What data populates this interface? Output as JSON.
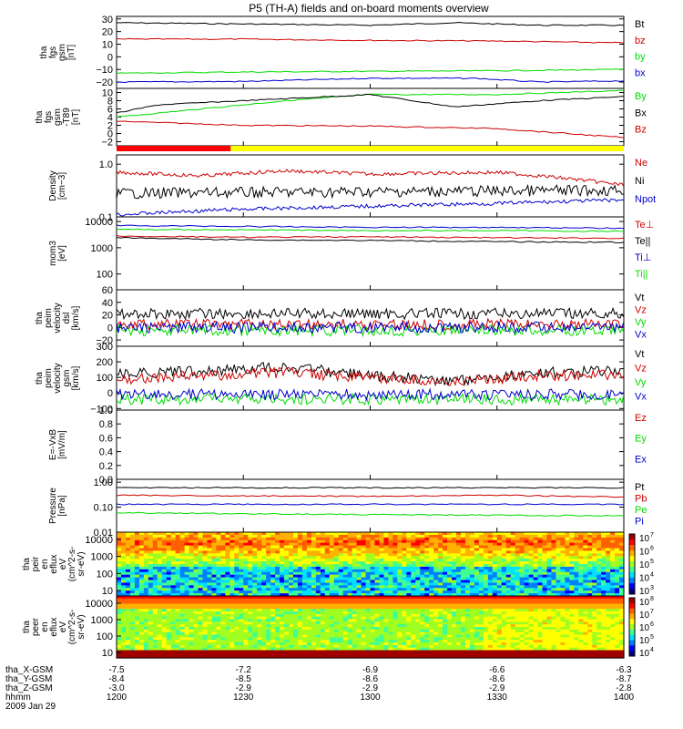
{
  "title": "P5 (TH-A) fields and on-board moments overview",
  "colors": {
    "black": "#000000",
    "red": "#cc0000",
    "green": "#00dd00",
    "blue": "#0000cc",
    "yellow": "#ffff00",
    "orange": "#ff8c00"
  },
  "chart_data": {
    "type": "line",
    "xaxis": {
      "tick_times": [
        "1200",
        "1230",
        "1300",
        "1330",
        "1400"
      ],
      "rows": [
        {
          "label": "tha_X-GSM",
          "values": [
            "-7.5",
            "-7.2",
            "-6.9",
            "-6.6",
            "-6.3"
          ]
        },
        {
          "label": "tha_Y-GSM",
          "values": [
            "-8.4",
            "-8.5",
            "-8.6",
            "-8.6",
            "-8.7"
          ]
        },
        {
          "label": "tha_Z-GSM",
          "values": [
            "-3.0",
            "-2.9",
            "-2.9",
            "-2.9",
            "-2.8"
          ]
        },
        {
          "label": "hhmm",
          "values": [
            "1200",
            "1230",
            "1300",
            "1330",
            "1400"
          ]
        }
      ],
      "date": "2009 Jan 29"
    },
    "panels": [
      {
        "id": "fgs",
        "ylabel": [
          "tha",
          "fgs",
          "gsm",
          "[nT]"
        ],
        "ylim": [
          -25,
          32
        ],
        "yticks": [
          30,
          20,
          10,
          0,
          -10,
          -20
        ],
        "yticklabels": [
          "30",
          "20",
          "10",
          "0",
          "−10",
          "−20"
        ],
        "series": [
          {
            "name": "Bt",
            "color": "#000000",
            "x": [
              0,
              30,
              60,
              80,
              100,
              120
            ],
            "y": [
              27,
              26,
              25,
              27,
              25,
              25
            ]
          },
          {
            "name": "bz",
            "color": "#cc0000",
            "x": [
              0,
              30,
              60,
              90,
              120
            ],
            "y": [
              14,
              14,
              13,
              12.5,
              11
            ]
          },
          {
            "name": "by",
            "color": "#00dd00",
            "x": [
              0,
              30,
              60,
              90,
              120
            ],
            "y": [
              -13,
              -12,
              -11.5,
              -11,
              -10
            ]
          },
          {
            "name": "bx",
            "color": "#0000cc",
            "x": [
              0,
              30,
              60,
              85,
              100,
              120
            ],
            "y": [
              -20,
              -19.5,
              -17,
              -17,
              -20,
              -19
            ]
          }
        ]
      },
      {
        "id": "fgs_dsm",
        "ylabel": [
          "tha",
          "fgs",
          "gsm",
          "-T89",
          "[nT]"
        ],
        "ylim": [
          -3,
          11
        ],
        "yticks": [
          10,
          8,
          6,
          4,
          2,
          0,
          -2
        ],
        "yticklabels": [
          "10",
          "8",
          "6",
          "4",
          "2",
          "0",
          "−2"
        ],
        "series": [
          {
            "name": "By",
            "color": "#00dd00",
            "x": [
              0,
              20,
              40,
              60,
              90,
              120
            ],
            "y": [
              4,
              6,
              8,
              9.5,
              9.5,
              10.5
            ]
          },
          {
            "name": "Bx",
            "color": "#000000",
            "x": [
              0,
              10,
              30,
              60,
              70,
              80,
              100,
              120
            ],
            "y": [
              5,
              7,
              8,
              9.5,
              8,
              6.5,
              8,
              9
            ]
          },
          {
            "name": "Bz",
            "color": "#cc0000",
            "x": [
              0,
              30,
              60,
              90,
              120
            ],
            "y": [
              3,
              2,
              1.8,
              1.2,
              -1
            ]
          }
        ]
      },
      {
        "id": "density",
        "ylabel": [
          "Density",
          "[cm−3]"
        ],
        "log": true,
        "ylim": [
          0.1,
          1.5
        ],
        "yticks": [
          1.0,
          0.1
        ],
        "yticklabels": [
          "1.0",
          "0.1"
        ],
        "series": [
          {
            "name": "Ne",
            "color": "#cc0000",
            "x": [
              0,
              20,
              40,
              60,
              90,
              110,
              120
            ],
            "y": [
              0.7,
              0.6,
              0.75,
              0.65,
              0.7,
              0.5,
              0.4
            ]
          },
          {
            "name": "Ni",
            "color": "#000000",
            "x": [
              0,
              60,
              120
            ],
            "y": [
              0.28,
              0.3,
              0.32
            ]
          },
          {
            "name": "Npot",
            "color": "#0000cc",
            "x": [
              0,
              30,
              60,
              90,
              120
            ],
            "y": [
              0.11,
              0.14,
              0.16,
              0.18,
              0.21
            ]
          }
        ]
      },
      {
        "id": "temp",
        "ylabel": [
          "mom3",
          "[eV]"
        ],
        "log": true,
        "ylim": [
          25,
          15000
        ],
        "yticks": [
          10000,
          1000,
          100
        ],
        "yticklabels": [
          "10000",
          "1000",
          "100"
        ],
        "series": [
          {
            "name": "Te⊥",
            "color": "#cc0000",
            "x": [
              0,
              30,
              60,
              90,
              120
            ],
            "y": [
              2800,
              2500,
              2600,
              2400,
              2300
            ]
          },
          {
            "name": "Te||",
            "color": "#000000",
            "x": [
              0,
              30,
              60,
              90,
              120
            ],
            "y": [
              2400,
              2000,
              1900,
              1700,
              1600
            ]
          },
          {
            "name": "Ti⊥",
            "color": "#0000cc",
            "x": [
              0,
              30,
              60,
              90,
              120
            ],
            "y": [
              7000,
              6500,
              6000,
              6000,
              5500
            ]
          },
          {
            "name": "Ti||",
            "color": "#00dd00",
            "x": [
              0,
              30,
              60,
              90,
              120
            ],
            "y": [
              5000,
              4800,
              4500,
              4500,
              4200
            ]
          }
        ]
      },
      {
        "id": "vel_dsl",
        "ylabel": [
          "tha",
          "peim",
          "velocity",
          "dsl",
          "[km/s]"
        ],
        "ylim": [
          -30,
          60
        ],
        "yticks": [
          60,
          40,
          20,
          0,
          -20
        ],
        "yticklabels": [
          "60",
          "40",
          "20",
          "0",
          "−20"
        ],
        "series": [
          {
            "name": "Vt",
            "color": "#000000",
            "x": [
              0,
              60,
              120
            ],
            "y": [
              22,
              22,
              22
            ]
          },
          {
            "name": "Vz",
            "color": "#cc0000",
            "x": [
              0,
              60,
              120
            ],
            "y": [
              5,
              5,
              5
            ]
          },
          {
            "name": "Vy",
            "color": "#00dd00",
            "x": [
              0,
              60,
              120
            ],
            "y": [
              -5,
              -5,
              -5
            ]
          },
          {
            "name": "Vx",
            "color": "#0000cc",
            "x": [
              0,
              60,
              120
            ],
            "y": [
              0,
              0,
              0
            ]
          }
        ]
      },
      {
        "id": "vel_gsm",
        "ylabel": [
          "tha",
          "peim",
          "velocity",
          "gsm",
          "[km/s]"
        ],
        "ylim": [
          -110,
          300
        ],
        "yticks": [
          300,
          200,
          100,
          0,
          -100
        ],
        "yticklabels": [
          "300",
          "200",
          "100",
          "0",
          "−100"
        ],
        "series": [
          {
            "name": "Vt",
            "color": "#000000",
            "x": [
              0,
              20,
              40,
              60,
              80,
              100,
              120
            ],
            "y": [
              120,
              140,
              170,
              110,
              80,
              130,
              140
            ]
          },
          {
            "name": "Vz",
            "color": "#cc0000",
            "x": [
              0,
              20,
              40,
              60,
              80,
              100,
              120
            ],
            "y": [
              90,
              110,
              130,
              100,
              70,
              110,
              120
            ]
          },
          {
            "name": "Vy",
            "color": "#00dd00",
            "x": [
              0,
              60,
              120
            ],
            "y": [
              -40,
              -40,
              -45
            ]
          },
          {
            "name": "Vx",
            "color": "#0000cc",
            "x": [
              0,
              60,
              120
            ],
            "y": [
              -10,
              -10,
              -10
            ]
          }
        ]
      },
      {
        "id": "efield",
        "ylabel": [
          "E=-VxB",
          "[mV/m]"
        ],
        "ylim": [
          0.0,
          1.0
        ],
        "yticks": [
          1.0,
          0.8,
          0.6,
          0.4,
          0.2,
          0.0
        ],
        "yticklabels": [
          "1.0",
          "0.8",
          "0.6",
          "0.4",
          "0.2",
          "0.0"
        ],
        "series": [
          {
            "name": "Ez",
            "color": "#cc0000",
            "x": [],
            "y": []
          },
          {
            "name": "Ey",
            "color": "#00dd00",
            "x": [],
            "y": []
          },
          {
            "name": "Ex",
            "color": "#0000cc",
            "x": [],
            "y": []
          }
        ]
      },
      {
        "id": "pressure",
        "ylabel": [
          "Pressure",
          "[nPa]"
        ],
        "log": true,
        "ylim": [
          0.01,
          1.3
        ],
        "yticks": [
          1.0,
          0.1,
          0.01
        ],
        "yticklabels": [
          "1.00",
          "0.10",
          "0.01"
        ],
        "series": [
          {
            "name": "Pt",
            "color": "#000000",
            "x": [
              0,
              60,
              120
            ],
            "y": [
              0.6,
              0.6,
              0.6
            ]
          },
          {
            "name": "Pb",
            "color": "#cc0000",
            "x": [
              0,
              60,
              90,
              120
            ],
            "y": [
              0.3,
              0.27,
              0.3,
              0.25
            ]
          },
          {
            "name": "Pe",
            "color": "#00dd00",
            "x": [
              0,
              60,
              120
            ],
            "y": [
              0.06,
              0.05,
              0.045
            ]
          },
          {
            "name": "Pi",
            "color": "#0000cc",
            "x": [
              0,
              60,
              120
            ],
            "y": [
              0.13,
              0.13,
              0.13
            ]
          }
        ]
      }
    ],
    "spectrograms": [
      {
        "id": "peir",
        "ylabel": [
          "tha",
          "peir",
          "en",
          "eflux",
          "eV",
          "(cm^2-s-",
          "sr-eV)"
        ],
        "yticklabels": [
          "10000",
          "1000",
          "100",
          "10"
        ],
        "colorbar_labels": [
          "10",
          "10",
          "10",
          "10",
          "10"
        ],
        "colorbar_exps": [
          "7",
          "6",
          "5",
          "4",
          "3"
        ]
      },
      {
        "id": "peer",
        "ylabel": [
          "tha",
          "peer",
          "en",
          "eflux",
          "eV",
          "(cm^2-s-",
          "sr-eV)"
        ],
        "yticklabels": [
          "10000",
          "1000",
          "100",
          "10"
        ],
        "colorbar_labels": [
          "10",
          "10",
          "10",
          "10",
          "10"
        ],
        "colorbar_exps": [
          "8",
          "7",
          "6",
          "5",
          "4"
        ]
      }
    ],
    "mode_bar": {
      "segments": [
        {
          "color": "#ff0000",
          "x0": 0,
          "x1": 27
        },
        {
          "color": "#ffff00",
          "x0": 27,
          "x1": 120
        }
      ]
    }
  }
}
